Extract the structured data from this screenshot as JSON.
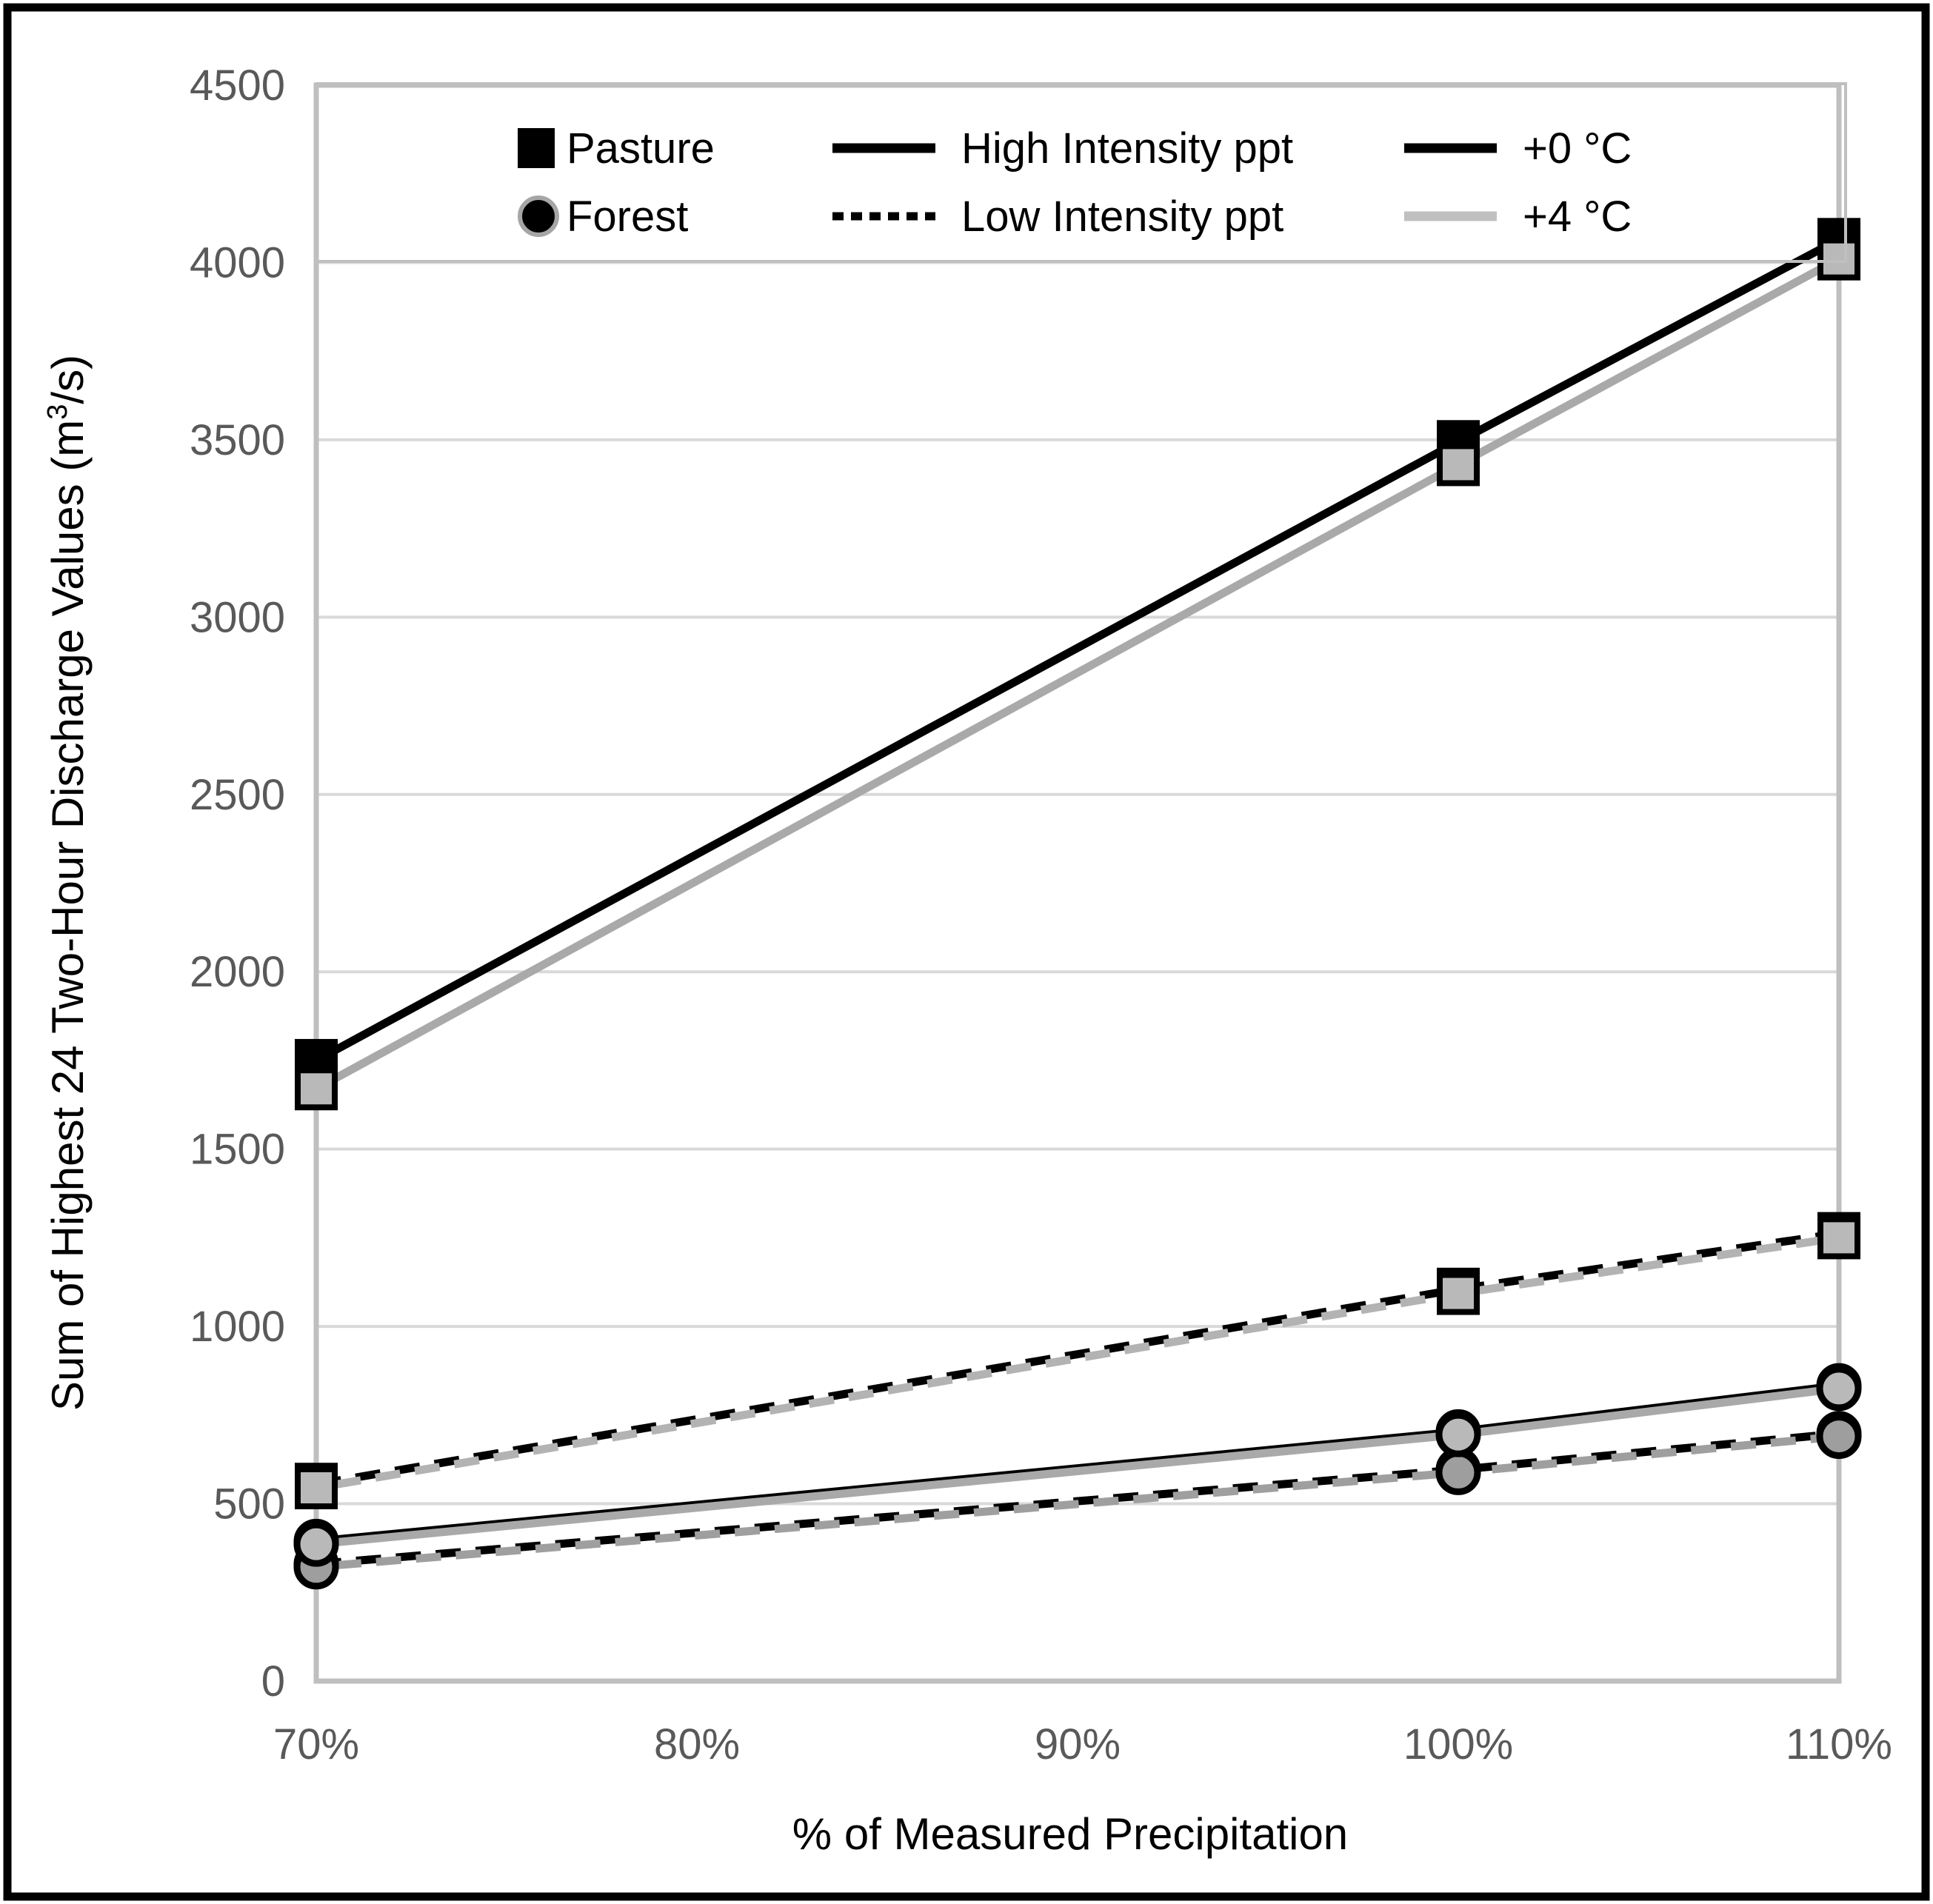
{
  "chart_data": {
    "type": "line",
    "title": "",
    "xlabel": "% of Measured Precipitation",
    "ylabel": "Sum of Highest 24 Two-Hour Discharge Values (m³/s)",
    "x_values": [
      70,
      100,
      110
    ],
    "x_tick_labels": [
      "70%",
      "80%",
      "90%",
      "100%",
      "110%"
    ],
    "x_tick_values": [
      70,
      80,
      90,
      100,
      110
    ],
    "y_tick_labels": [
      "0",
      "500",
      "1000",
      "1500",
      "2000",
      "2500",
      "3000",
      "3500",
      "4000",
      "4500"
    ],
    "ylim": [
      0,
      4500
    ],
    "y_step": 500,
    "grid": "horizontal",
    "series": [
      {
        "id": "pasture-high-0",
        "land": "Pasture",
        "intensity": "High Intensity ppt",
        "temp": "+0 °C",
        "marker": "square",
        "line": "solid",
        "line_color": "#000000",
        "marker_fill": "#000000",
        "values": [
          1750,
          3495,
          4065
        ]
      },
      {
        "id": "pasture-high-4",
        "land": "Pasture",
        "intensity": "High Intensity ppt",
        "temp": "+4 °C",
        "marker": "square",
        "line": "solid",
        "line_color": "#a9a9a9",
        "marker_fill": "#b9b9b9",
        "values": [
          1670,
          3430,
          4010
        ]
      },
      {
        "id": "pasture-low-0",
        "land": "Pasture",
        "intensity": "Low Intensity ppt",
        "temp": "+0 °C",
        "marker": "square",
        "line": "dashed",
        "line_color": "#000000",
        "marker_fill": "#000000",
        "values": [
          555,
          1105,
          1262
        ]
      },
      {
        "id": "pasture-low-4",
        "land": "Pasture",
        "intensity": "Low Intensity ppt",
        "temp": "+4 °C",
        "marker": "square",
        "line": "dashed",
        "line_color": "#b3b3b3",
        "marker_fill": "#b9b9b9",
        "values": [
          545,
          1093,
          1250
        ]
      },
      {
        "id": "forest-high-0",
        "land": "Forest",
        "intensity": "High Intensity ppt",
        "temp": "+0 °C",
        "marker": "circle",
        "line": "solid",
        "line_color": "#000000",
        "marker_fill": "#111111",
        "values": [
          394,
          703,
          833
        ]
      },
      {
        "id": "forest-high-4",
        "land": "Forest",
        "intensity": "High Intensity ppt",
        "temp": "+4 °C",
        "marker": "circle",
        "line": "solid",
        "line_color": "#a9a9a9",
        "marker_fill": "#b9b9b9",
        "values": [
          386,
          695,
          825
        ]
      },
      {
        "id": "forest-low-0",
        "land": "Forest",
        "intensity": "Low Intensity ppt",
        "temp": "+0 °C",
        "marker": "circle",
        "line": "dashed",
        "line_color": "#000000",
        "marker_fill": "#111111",
        "values": [
          330,
          596,
          698
        ]
      },
      {
        "id": "forest-low-4",
        "land": "Forest",
        "intensity": "Low Intensity ppt",
        "temp": "+4 °C",
        "marker": "circle",
        "line": "dashed",
        "line_color": "#9f9f9f",
        "marker_fill": "#9e9e9e",
        "values": [
          322,
          588,
          690
        ]
      }
    ],
    "legend": {
      "position": "top",
      "marker_items": [
        {
          "label": "Pasture",
          "marker": "square"
        },
        {
          "label": "Forest",
          "marker": "circle"
        }
      ],
      "line_style_items": [
        {
          "label": "High Intensity ppt",
          "line": "solid"
        },
        {
          "label": "Low Intensity ppt",
          "line": "dashed"
        }
      ],
      "temp_items": [
        {
          "label": "+0 °C",
          "color": "#000000"
        },
        {
          "label": "+4 °C",
          "color": "#c0c0c0"
        }
      ]
    }
  },
  "styles": {
    "frame_color": "#000000",
    "axis_color": "#bfbfbf",
    "gridline_color": "#d9d9d9",
    "tick_label_color": "#595959",
    "text_color": "#000000",
    "background": "#ffffff"
  }
}
